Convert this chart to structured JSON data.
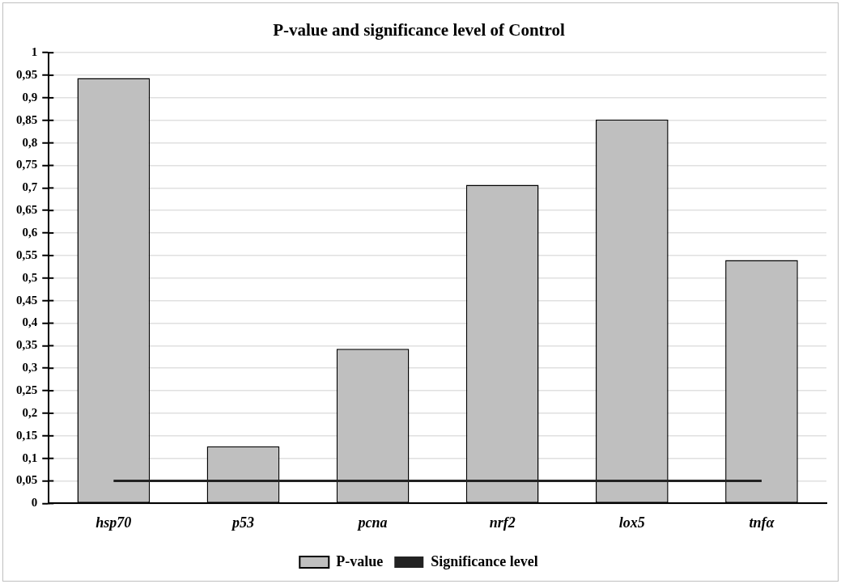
{
  "chart_data": {
    "type": "bar",
    "title": "P-value and significance level of Control",
    "categories": [
      "hsp70",
      "p53",
      "pcna",
      "nrf2",
      "lox5",
      "tnfα"
    ],
    "series": [
      {
        "name": "P-value",
        "color": "#bfbfbf",
        "values": [
          0.944,
          0.127,
          0.343,
          0.707,
          0.852,
          0.54
        ]
      },
      {
        "name": "Significance level",
        "type": "line",
        "color": "#222222",
        "values": [
          0.05,
          0.05,
          0.05,
          0.05,
          0.05,
          0.05
        ]
      }
    ],
    "ylim": [
      0,
      1
    ],
    "yticks": [
      0,
      {
        "value": 0.05,
        "label": "0,05"
      },
      {
        "value": 0.1,
        "label": "0,1"
      },
      {
        "value": 0.15,
        "label": "0,15"
      },
      {
        "value": 0.2,
        "label": "0,2"
      },
      {
        "value": 0.25,
        "label": "0,25"
      },
      {
        "value": 0.3,
        "label": "0,3"
      },
      {
        "value": 0.35,
        "label": "0,35"
      },
      {
        "value": 0.4,
        "label": "0,4"
      },
      {
        "value": 0.45,
        "label": "0,45"
      },
      {
        "value": 0.5,
        "label": "0,5"
      },
      {
        "value": 0.55,
        "label": "0,55"
      },
      {
        "value": 0.6,
        "label": "0,6"
      },
      {
        "value": 0.65,
        "label": "0,65"
      },
      {
        "value": 0.7,
        "label": "0,7"
      },
      {
        "value": 0.75,
        "label": "0,75"
      },
      {
        "value": 0.8,
        "label": "0,8"
      },
      {
        "value": 0.85,
        "label": "0,85"
      },
      {
        "value": 0.9,
        "label": "0,9"
      },
      {
        "value": 0.95,
        "label": "0,95"
      },
      1
    ],
    "grid": "y",
    "legend": "bottom",
    "marker": "none",
    "line_style": "solid"
  }
}
